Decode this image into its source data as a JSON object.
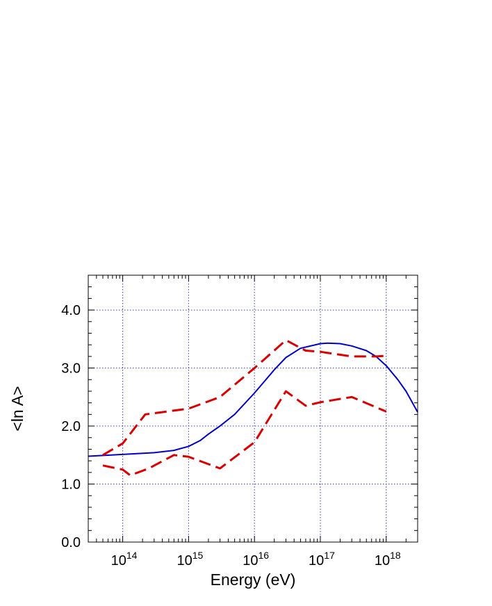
{
  "chart_data": {
    "type": "line",
    "xlabel": "Energy (eV)",
    "ylabel": "<ln A>",
    "x_scale": "log10",
    "xlim": [
      30000000000000.0,
      3e+18
    ],
    "ylim": [
      0,
      4.6
    ],
    "grid": true,
    "grid_color": "#3333cc",
    "x_ticks": [
      {
        "value": 100000000000000.0,
        "base": "10",
        "exp": "14"
      },
      {
        "value": 1000000000000000.0,
        "base": "10",
        "exp": "15"
      },
      {
        "value": 1e+16,
        "base": "10",
        "exp": "16"
      },
      {
        "value": 1e+17,
        "base": "10",
        "exp": "17"
      },
      {
        "value": 1e+18,
        "base": "10",
        "exp": "18"
      }
    ],
    "y_ticks": [
      {
        "value": 0,
        "label": "0.0"
      },
      {
        "value": 1,
        "label": "1.0"
      },
      {
        "value": 2,
        "label": "2.0"
      },
      {
        "value": 3,
        "label": "3.0"
      },
      {
        "value": 4,
        "label": "4.0"
      }
    ],
    "series": [
      {
        "style": "solid",
        "color": "#0000cc",
        "x": [
          30000000000000.0,
          100000000000000.0,
          300000000000000.0,
          600000000000000.0,
          1000000000000000.0,
          1500000000000000.0,
          2000000000000000.0,
          3000000000000000.0,
          5000000000000000.0,
          1e+16,
          2e+16,
          3e+16,
          5e+16,
          1e+17,
          1.3e+17,
          2e+17,
          3e+17,
          5e+17,
          7e+17,
          1e+18,
          1.5e+18,
          2e+18,
          3e+18
        ],
        "y": [
          1.48,
          1.51,
          1.54,
          1.58,
          1.65,
          1.75,
          1.86,
          2.0,
          2.2,
          2.57,
          2.97,
          3.18,
          3.34,
          3.42,
          3.43,
          3.42,
          3.38,
          3.3,
          3.2,
          3.04,
          2.8,
          2.6,
          2.24
        ]
      },
      {
        "style": "dashed",
        "color": "#dd0000",
        "x": [
          50000000000000.0,
          100000000000000.0,
          220000000000000.0,
          1000000000000000.0,
          3000000000000000.0,
          1e+16,
          3e+16,
          6e+16,
          1e+17,
          3e+17,
          7e+17,
          1e+18
        ],
        "y": [
          1.5,
          1.7,
          2.2,
          2.3,
          2.5,
          3.0,
          3.48,
          3.3,
          3.28,
          3.2,
          3.2,
          3.21
        ]
      },
      {
        "style": "dashed",
        "color": "#dd0000",
        "x": [
          50000000000000.0,
          100000000000000.0,
          130000000000000.0,
          250000000000000.0,
          600000000000000.0,
          1000000000000000.0,
          3000000000000000.0,
          1e+16,
          3e+16,
          6e+16,
          1e+17,
          3e+17,
          1e+18
        ],
        "y": [
          1.32,
          1.25,
          1.15,
          1.27,
          1.5,
          1.47,
          1.27,
          1.72,
          2.6,
          2.35,
          2.41,
          2.5,
          2.25
        ]
      }
    ]
  }
}
